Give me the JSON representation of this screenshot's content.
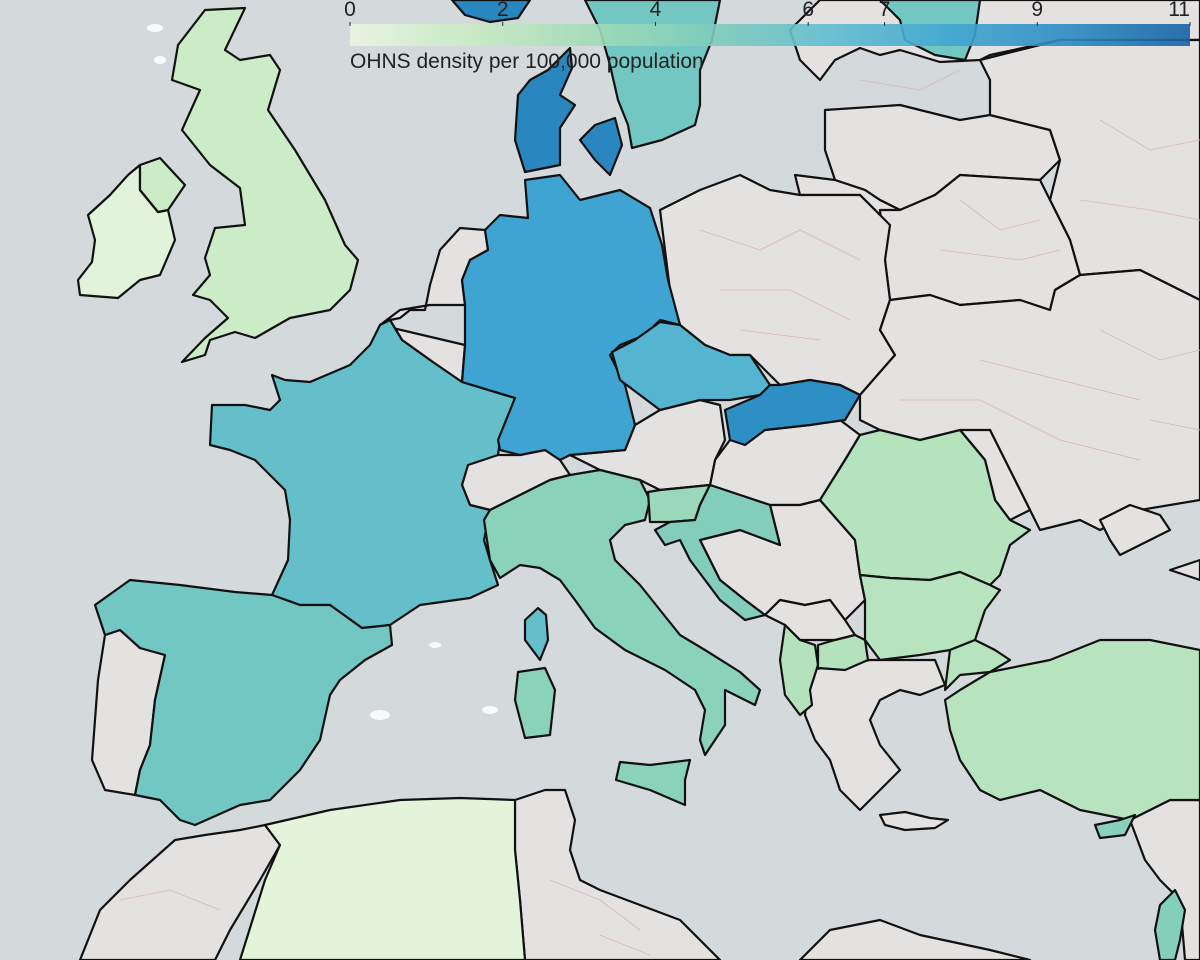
{
  "legend": {
    "title": "OHNS density per 100,000 population",
    "ticks": [
      0,
      2,
      4,
      6,
      7,
      9,
      11
    ],
    "min": 0,
    "max": 11,
    "colors": [
      "#e9f6e1",
      "#c9ebc4",
      "#a3dcb7",
      "#7fcdbb",
      "#5fbccf",
      "#41a6d2",
      "#2b8bc2",
      "#1761a5"
    ]
  },
  "no_data_color": "#e4e1e1",
  "countries": [
    {
      "name": "Ireland",
      "value": 0.4
    },
    {
      "name": "United Kingdom",
      "value": 1.4
    },
    {
      "name": "France",
      "value": 6.0
    },
    {
      "name": "Spain",
      "value": 5.3
    },
    {
      "name": "Germany",
      "value": 8.0
    },
    {
      "name": "Denmark",
      "value": 9.6
    },
    {
      "name": "Sweden",
      "value": 5.3
    },
    {
      "name": "Czechia",
      "value": 6.8
    },
    {
      "name": "Slovakia",
      "value": 9.2
    },
    {
      "name": "Italy",
      "value": 4.2
    },
    {
      "name": "Slovenia",
      "value": 3.6
    },
    {
      "name": "Croatia",
      "value": 4.6
    },
    {
      "name": "Albania",
      "value": 2.5
    },
    {
      "name": "Romania",
      "value": 2.4
    },
    {
      "name": "Bulgaria",
      "value": 2.3
    },
    {
      "name": "North Macedonia",
      "value": 2.5
    },
    {
      "name": "Turkey",
      "value": 2.3
    },
    {
      "name": "Cyprus",
      "value": 4.3
    },
    {
      "name": "Algeria",
      "value": 0.3
    },
    {
      "name": "Israel",
      "value": 4.5
    }
  ]
}
